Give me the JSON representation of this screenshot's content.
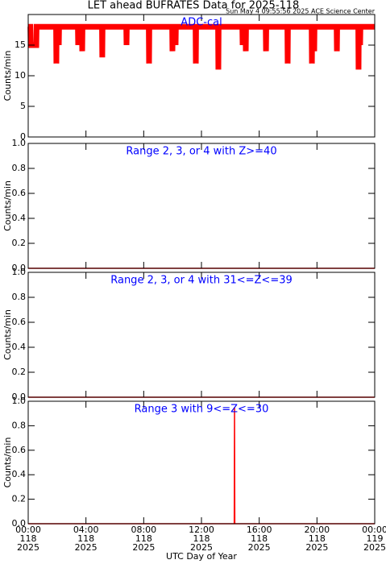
{
  "header": {
    "title": "LET ahead BUFRATES Data for 2025-118",
    "timestamp": "Sun May  4 09:55:56 2025 ACE Science Center",
    "xlabel": "UTC Day of Year"
  },
  "x_axis": {
    "xlim": [
      0,
      24
    ],
    "xticks": [
      {
        "value": 0,
        "label": "00:00"
      },
      {
        "value": 4,
        "label": "04:00"
      },
      {
        "value": 8,
        "label": "08:00"
      },
      {
        "value": 12,
        "label": "12:00"
      },
      {
        "value": 16,
        "label": "16:00"
      },
      {
        "value": 20,
        "label": "20:00"
      },
      {
        "value": 24,
        "label": "00:00"
      }
    ],
    "xtick_days": [
      "118",
      "118",
      "118",
      "118",
      "118",
      "118",
      "119"
    ],
    "xtick_years": [
      "2025",
      "2025",
      "2025",
      "2025",
      "2025",
      "2025",
      "2025"
    ]
  },
  "chart_data": [
    {
      "type": "line",
      "title": "ADC-cal",
      "ylabel": "Counts/min",
      "ylim": [
        0,
        20
      ],
      "yticks": [
        0,
        5,
        10,
        15
      ],
      "color": "#ff0000",
      "x": [
        0,
        0.15,
        0.17,
        0.56,
        0.58,
        1.93,
        1.95,
        1.97,
        2.1,
        2.12,
        2.14,
        3.44,
        3.46,
        3.48,
        3.72,
        3.74,
        3.76,
        5.11,
        5.13,
        5.15,
        6.79,
        6.81,
        6.83,
        8.35,
        8.37,
        8.39,
        9.97,
        9.99,
        10.01,
        10.19,
        10.21,
        10.23,
        11.59,
        11.61,
        11.63,
        13.15,
        13.17,
        13.19,
        14.83,
        14.85,
        14.87,
        15.05,
        15.07,
        15.09,
        16.45,
        16.47,
        16.49,
        17.95,
        17.97,
        17.99,
        19.63,
        19.65,
        19.67,
        19.79,
        19.81,
        19.83,
        21.36,
        21.38,
        21.4,
        22.86,
        22.88,
        22.9,
        22.97,
        22.99,
        23.01,
        24
      ],
      "values": [
        18,
        18,
        15,
        15,
        18,
        18,
        12,
        18,
        18,
        15,
        18,
        18,
        15,
        18,
        18,
        14,
        18,
        18,
        13,
        18,
        18,
        15,
        18,
        18,
        12,
        18,
        18,
        14,
        18,
        18,
        15,
        18,
        18,
        12,
        18,
        18,
        11,
        18,
        18,
        15,
        18,
        18,
        14,
        18,
        18,
        14,
        18,
        18,
        12,
        18,
        18,
        12,
        18,
        18,
        14,
        18,
        18,
        14,
        18,
        18,
        11,
        18,
        18,
        15,
        18,
        18
      ]
    },
    {
      "type": "line",
      "title": "Range 2, 3, or 4 with Z>=40",
      "ylabel": "Counts/min",
      "ylim": [
        0,
        1
      ],
      "yticks": [
        {
          "value": 0,
          "label": "0.0"
        },
        0.2,
        0.4,
        0.6,
        0.8,
        {
          "value": 1,
          "label": "1.0"
        }
      ],
      "color": "#ff0000",
      "x": [
        0,
        24
      ],
      "values": [
        0,
        0
      ]
    },
    {
      "type": "line",
      "title": "Range 2, 3, or 4 with 31<=Z<=39",
      "ylabel": "Counts/min",
      "ylim": [
        0,
        1
      ],
      "yticks": [
        {
          "value": 0,
          "label": "0.0"
        },
        0.2,
        0.4,
        0.6,
        0.8,
        {
          "value": 1,
          "label": "1.0"
        }
      ],
      "color": "#ff0000",
      "x": [
        0,
        24
      ],
      "values": [
        0,
        0
      ]
    },
    {
      "type": "line",
      "title": "Range 3 with 9<=Z<=30",
      "ylabel": "Counts/min",
      "ylim": [
        0,
        1
      ],
      "yticks": [
        {
          "value": 0,
          "label": "0.0"
        },
        0.2,
        0.4,
        0.6,
        0.8,
        {
          "value": 1,
          "label": "1.0"
        }
      ],
      "color": "#ff0000",
      "x": [
        0,
        14.27,
        14.29,
        14.31,
        24
      ],
      "values": [
        0,
        0,
        0.95,
        0,
        0
      ]
    }
  ]
}
